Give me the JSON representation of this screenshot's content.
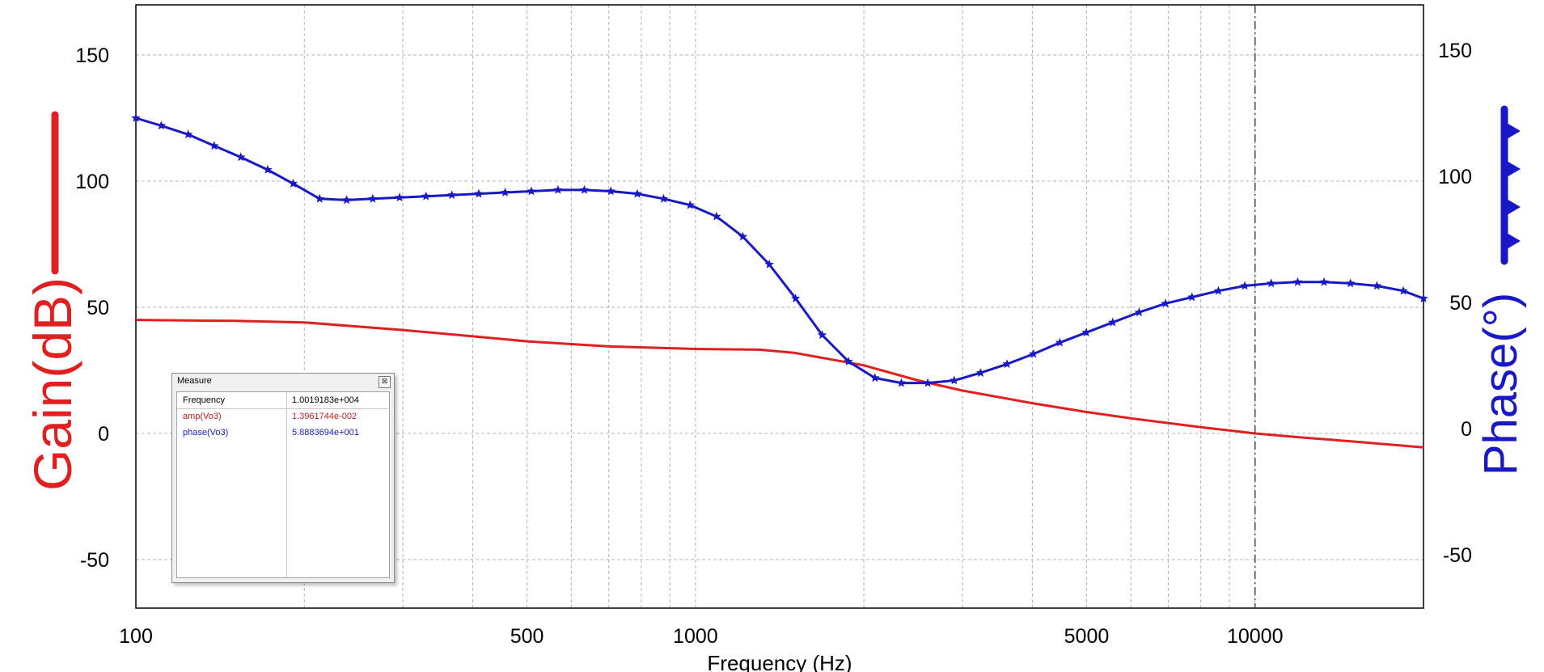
{
  "chart_data": {
    "type": "line",
    "xlabel": "Frequency (Hz)",
    "ylabel_left": "Gain(dB)",
    "ylabel_right": "Phase(°)",
    "x_scale": "log",
    "xlim": [
      100,
      20000
    ],
    "ylim_left": [
      -70,
      170
    ],
    "ylim_right": [
      -70,
      170
    ],
    "grid": true,
    "x_ticks": [
      100,
      500,
      1000,
      5000,
      10000
    ],
    "x_tick_labels": [
      "100",
      "500",
      "1000",
      "5000",
      "10000"
    ],
    "y_ticks_left": [
      150,
      100,
      50,
      0,
      -50
    ],
    "y_tick_labels_left": [
      "150",
      "100",
      "50",
      "0",
      "-50"
    ],
    "y_ticks_right": [
      150,
      100,
      50,
      0,
      -50
    ],
    "y_tick_labels_right": [
      "150",
      "100",
      "50",
      "0",
      "-50"
    ],
    "cursor_x": 10000,
    "series": [
      {
        "axis": "left",
        "color": "#e02020",
        "marker": "none",
        "x": [
          100,
          150,
          200,
          300,
          400,
          500,
          700,
          1000,
          1300,
          1500,
          2000,
          2500,
          3000,
          4000,
          5000,
          6000,
          8000,
          10000,
          12000,
          15000,
          20000
        ],
        "y": [
          45,
          44.6,
          44,
          41,
          38.5,
          36.5,
          34.5,
          33.5,
          33.2,
          32,
          27,
          21,
          17,
          12,
          8.5,
          6,
          2.5,
          0,
          -1.5,
          -3.2,
          -5.5
        ]
      },
      {
        "axis": "right",
        "color": "#1818c8",
        "marker": "star",
        "x": [
          100,
          111,
          124,
          138,
          154,
          172,
          191,
          213,
          238,
          265,
          296,
          330,
          367,
          410,
          457,
          509,
          568,
          633,
          706,
          787,
          877,
          978,
          1090,
          1215,
          1355,
          1510,
          1684,
          1877,
          2093,
          2333,
          2601,
          2900,
          3233,
          3604,
          4018,
          4479,
          4994,
          5567,
          6206,
          6919,
          7714,
          8600,
          9587,
          10688,
          11916,
          13284,
          14809,
          16510,
          18406,
          20000
        ],
        "y": [
          125,
          122,
          118.5,
          114,
          109.5,
          104.5,
          99,
          93,
          92.5,
          93,
          93.5,
          94,
          94.5,
          95,
          95.5,
          96,
          96.5,
          96.5,
          96,
          95,
          93,
          90.5,
          86,
          78,
          67,
          53.5,
          39,
          28.5,
          22,
          20,
          20,
          21,
          24,
          27.5,
          31.5,
          36,
          40,
          44,
          48,
          51.5,
          54,
          56.5,
          58.5,
          59.5,
          60,
          60,
          59.5,
          58.5,
          56.5,
          53.5
        ]
      }
    ],
    "measure_panel": {
      "title": "Measure",
      "close_icon": "close-icon",
      "rows": [
        {
          "key": "Frequency",
          "value": "1.0019183e+004",
          "color": "#000000"
        },
        {
          "key": "amp(Vo3)",
          "value": "1.3961744e-002",
          "color": "#c02020"
        },
        {
          "key": "phase(Vo3)",
          "value": "5.8883694e+001",
          "color": "#1a1ac0"
        }
      ]
    }
  }
}
